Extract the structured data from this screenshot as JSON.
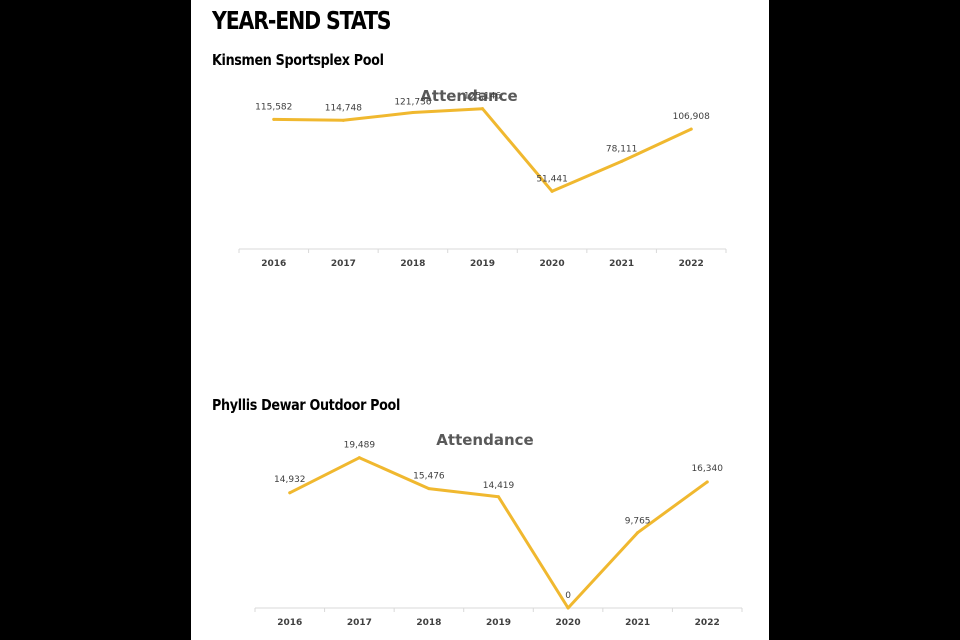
{
  "heading": "YEAR-END STATS",
  "colors": {
    "background": "#000000",
    "page": "#ffffff",
    "series": "#f0b82f"
  },
  "sections": [
    {
      "title": "Kinsmen Sportsplex Pool"
    },
    {
      "title": "Phyllis Dewar Outdoor Pool"
    }
  ],
  "chart_data": [
    {
      "type": "line",
      "title": "Attendance",
      "xlabel": "",
      "ylabel": "",
      "categories": [
        "2016",
        "2017",
        "2018",
        "2019",
        "2020",
        "2021",
        "2022"
      ],
      "values": [
        115582,
        114748,
        121736,
        125146,
        51441,
        78111,
        106908
      ],
      "value_labels": [
        "115,582",
        "114,748",
        "121,736",
        "125,146",
        "51,441",
        "78,111",
        "106,908"
      ],
      "ylim": [
        0,
        140000
      ],
      "grid": false,
      "legend": "none"
    },
    {
      "type": "line",
      "title": "Attendance",
      "xlabel": "",
      "ylabel": "",
      "categories": [
        "2016",
        "2017",
        "2018",
        "2019",
        "2020",
        "2021",
        "2022"
      ],
      "values": [
        14932,
        19489,
        15476,
        14419,
        0,
        9765,
        16340
      ],
      "value_labels": [
        "14,932",
        "19,489",
        "15,476",
        "14,419",
        "0",
        "9,765",
        "16,340"
      ],
      "ylim": [
        0,
        21000
      ],
      "grid": false,
      "legend": "none"
    }
  ]
}
